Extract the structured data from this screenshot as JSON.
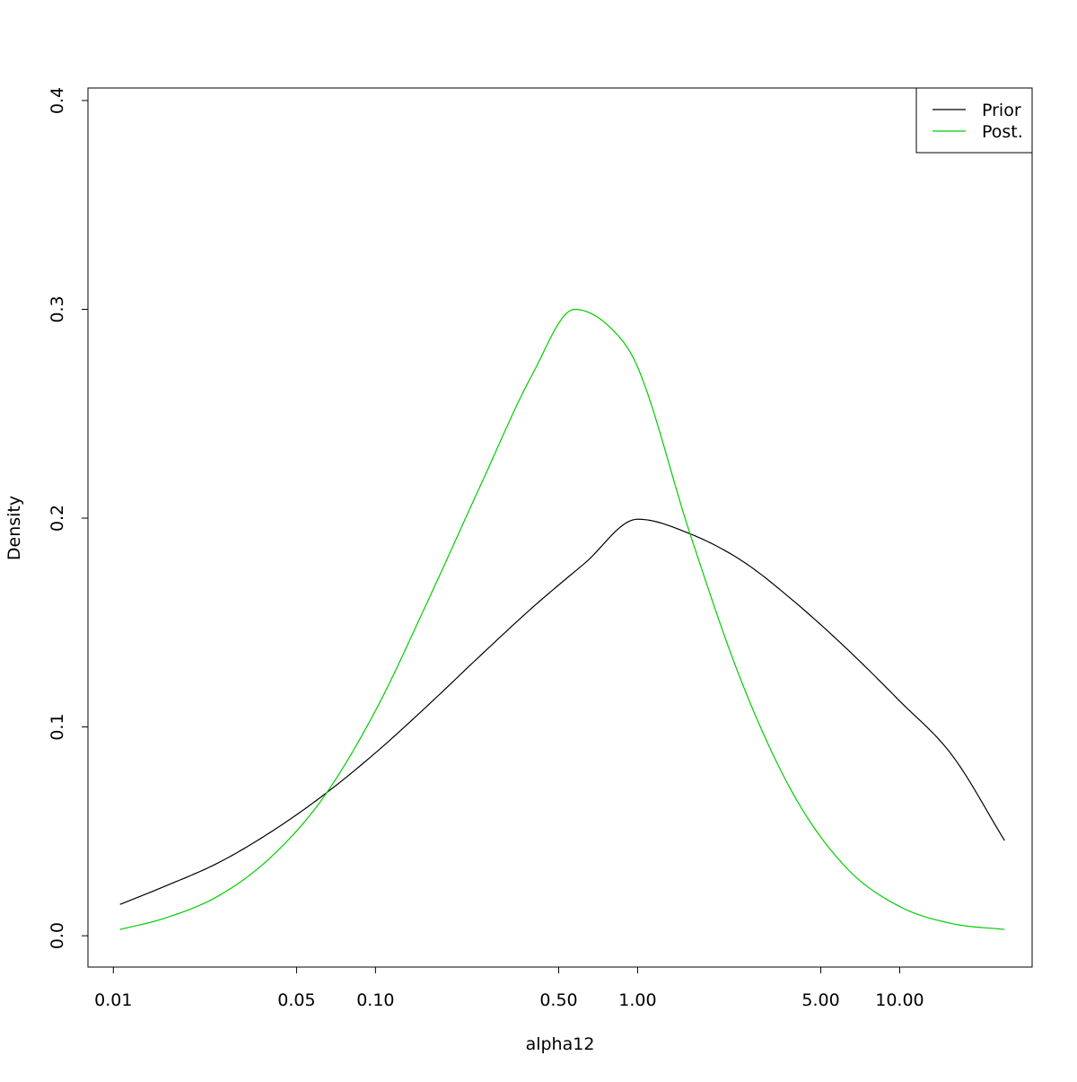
{
  "chart_data": {
    "type": "line",
    "xlabel": "alpha12",
    "ylabel": "Density",
    "x_scale": "log10",
    "xlim": [
      0.008,
      32
    ],
    "ylim": [
      -0.015,
      0.406
    ],
    "x_ticks": [
      {
        "value": 0.01,
        "label": "0.01"
      },
      {
        "value": 0.05,
        "label": "0.05"
      },
      {
        "value": 0.1,
        "label": "0.10"
      },
      {
        "value": 0.5,
        "label": "0.50"
      },
      {
        "value": 1,
        "label": "1.00"
      },
      {
        "value": 5,
        "label": "5.00"
      },
      {
        "value": 10,
        "label": "10.00"
      }
    ],
    "y_ticks": [
      {
        "value": 0.0,
        "label": "0.0"
      },
      {
        "value": 0.1,
        "label": "0.1"
      },
      {
        "value": 0.2,
        "label": "0.2"
      },
      {
        "value": 0.3,
        "label": "0.3"
      },
      {
        "value": 0.4,
        "label": "0.4"
      }
    ],
    "legend": {
      "position": "top-right"
    },
    "grid": false,
    "series": [
      {
        "name": "Prior",
        "color": "#000000",
        "x": [
          0.0106,
          0.0158,
          0.0251,
          0.0398,
          0.0631,
          0.1,
          0.158,
          0.251,
          0.398,
          0.631,
          1.0,
          1.585,
          2.512,
          3.981,
          6.31,
          10.0,
          15.85,
          25.12
        ],
        "values": [
          0.015,
          0.0238,
          0.0349,
          0.0496,
          0.0672,
          0.0876,
          0.1102,
          0.1341,
          0.1573,
          0.1786,
          0.1995,
          0.1925,
          0.1794,
          0.1598,
          0.1372,
          0.1124,
          0.0864,
          0.0456
        ]
      },
      {
        "name": "Post.",
        "color": "#00cd00",
        "x": [
          0.0106,
          0.0158,
          0.0251,
          0.0398,
          0.0631,
          0.1,
          0.158,
          0.251,
          0.398,
          0.575,
          0.794,
          1.0,
          1.585,
          2.512,
          3.981,
          6.31,
          10.0,
          15.85,
          25.12
        ],
        "values": [
          0.003,
          0.0085,
          0.019,
          0.0375,
          0.066,
          0.1078,
          0.16,
          0.2154,
          0.2692,
          0.3,
          0.2908,
          0.2724,
          0.1925,
          0.1206,
          0.0665,
          0.0321,
          0.014,
          0.0058,
          0.003
        ]
      }
    ]
  }
}
